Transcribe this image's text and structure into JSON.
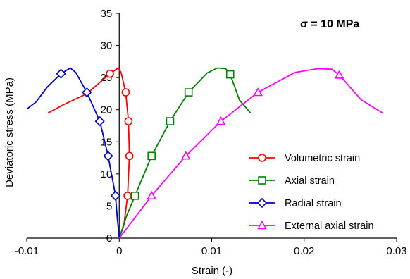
{
  "chart_data": {
    "type": "line",
    "title": "",
    "annotation": "σ  = 10 MPa",
    "xlabel": "Strain (-)",
    "ylabel": "Deviatoric stress (MPa)",
    "xlim": [
      -0.01,
      0.03
    ],
    "ylim": [
      0,
      35
    ],
    "xticks": [
      -0.01,
      0,
      0.01,
      0.02,
      0.03
    ],
    "xtick_labels": [
      "-0.01",
      "0",
      "0.01",
      "0.02",
      "0.03"
    ],
    "yticks": [
      0,
      5,
      10,
      15,
      20,
      25,
      30,
      35
    ],
    "ytick_labels": [
      "0",
      "5",
      "10",
      "15",
      "20",
      "25",
      "30",
      "35"
    ],
    "grid": false,
    "legend_position": "bottom-right",
    "series": [
      {
        "name": "Volumetric strain",
        "color": "#ff0000",
        "marker": "circle",
        "line": [
          [
            0,
            0
          ],
          [
            0.0005,
            2
          ],
          [
            0.0009,
            6.6
          ],
          [
            0.0011,
            12.8
          ],
          [
            0.001,
            18.2
          ],
          [
            0.0007,
            22.7
          ],
          [
            0.0002,
            25.8
          ],
          [
            -0.0001,
            26.5
          ],
          [
            -0.001,
            25.6
          ],
          [
            -0.0035,
            22.5
          ],
          [
            -0.006,
            20.8
          ],
          [
            -0.0077,
            19.5
          ]
        ],
        "markers": [
          [
            0.0009,
            6.6
          ],
          [
            0.0011,
            12.8
          ],
          [
            0.001,
            18.2
          ],
          [
            0.0007,
            22.7
          ],
          [
            -0.001,
            25.6
          ]
        ]
      },
      {
        "name": "Axial strain",
        "color": "#008000",
        "marker": "square",
        "line": [
          [
            0,
            0
          ],
          [
            0.0008,
            3.5
          ],
          [
            0.0017,
            6.6
          ],
          [
            0.0035,
            12.8
          ],
          [
            0.0055,
            18.2
          ],
          [
            0.0075,
            22.7
          ],
          [
            0.0095,
            25.7
          ],
          [
            0.0106,
            26.5
          ],
          [
            0.0115,
            26.4
          ],
          [
            0.012,
            25.5
          ],
          [
            0.013,
            21.5
          ],
          [
            0.0142,
            19.5
          ]
        ],
        "markers": [
          [
            0.0017,
            6.6
          ],
          [
            0.0035,
            12.8
          ],
          [
            0.0055,
            18.2
          ],
          [
            0.0075,
            22.7
          ],
          [
            0.012,
            25.5
          ]
        ]
      },
      {
        "name": "Radial strain",
        "color": "#0000cc",
        "marker": "diamond",
        "line": [
          [
            0,
            0
          ],
          [
            -0.0002,
            3
          ],
          [
            -0.0004,
            6.6
          ],
          [
            -0.0012,
            12.8
          ],
          [
            -0.0021,
            18.2
          ],
          [
            -0.0035,
            22.7
          ],
          [
            -0.0047,
            25.8
          ],
          [
            -0.0053,
            26.5
          ],
          [
            -0.0063,
            25.6
          ],
          [
            -0.0078,
            23.5
          ],
          [
            -0.009,
            21.2
          ],
          [
            -0.01,
            20.1
          ]
        ],
        "markers": [
          [
            -0.0004,
            6.6
          ],
          [
            -0.0012,
            12.8
          ],
          [
            -0.0021,
            18.2
          ],
          [
            -0.0035,
            22.7
          ],
          [
            -0.0063,
            25.6
          ]
        ]
      },
      {
        "name": "External axial strain",
        "color": "#ff00ff",
        "marker": "triangle",
        "line": [
          [
            0,
            0
          ],
          [
            0.0035,
            6.6
          ],
          [
            0.0072,
            12.8
          ],
          [
            0.011,
            18.2
          ],
          [
            0.015,
            22.7
          ],
          [
            0.019,
            25.8
          ],
          [
            0.0215,
            26.4
          ],
          [
            0.023,
            26.3
          ],
          [
            0.0238,
            25.4
          ],
          [
            0.0262,
            21.5
          ],
          [
            0.0285,
            19.5
          ]
        ],
        "markers": [
          [
            0.0035,
            6.6
          ],
          [
            0.0072,
            12.8
          ],
          [
            0.011,
            18.2
          ],
          [
            0.015,
            22.7
          ],
          [
            0.0238,
            25.4
          ]
        ]
      }
    ]
  }
}
